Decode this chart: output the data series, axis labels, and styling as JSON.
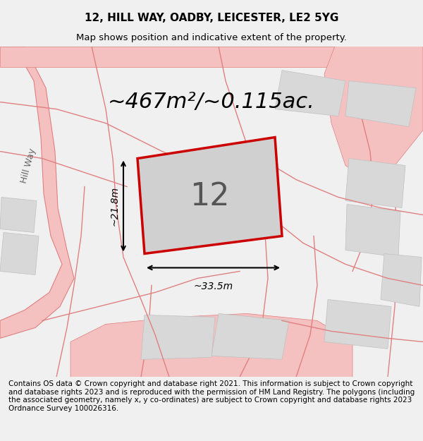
{
  "title": "12, HILL WAY, OADBY, LEICESTER, LE2 5YG",
  "subtitle": "Map shows position and indicative extent of the property.",
  "area_label": "~467m²/~0.115ac.",
  "property_number": "12",
  "dim_width": "~33.5m",
  "dim_height": "~21.8m",
  "street_label": "Hill Way",
  "footer": "Contains OS data © Crown copyright and database right 2021. This information is subject to Crown copyright and database rights 2023 and is reproduced with the permission of HM Land Registry. The polygons (including the associated geometry, namely x, y co-ordinates) are subject to Crown copyright and database rights 2023 Ordnance Survey 100026316.",
  "bg_color": "#e8e8e8",
  "map_bg": "#e0e0e0",
  "property_fill": "#d0d0d0",
  "property_edge": "#cc0000",
  "road_color": "#f5c0c0",
  "road_stroke": "#e08080",
  "title_fontsize": 11,
  "subtitle_fontsize": 9.5,
  "area_fontsize": 22,
  "footer_fontsize": 7.5
}
